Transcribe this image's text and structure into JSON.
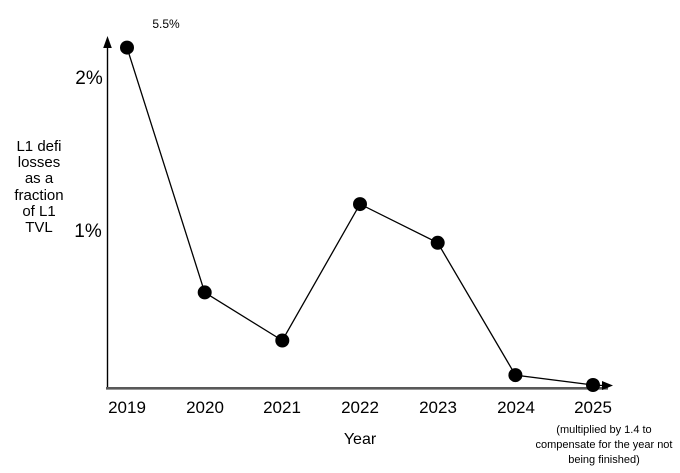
{
  "chart_data": {
    "type": "line",
    "title": "",
    "xlabel": "Year",
    "ylabel": "L1 defi losses as a fraction of L1 TVL",
    "categories": [
      "2019",
      "2020",
      "2021",
      "2022",
      "2023",
      "2024",
      "2025"
    ],
    "values_percent": [
      5.5,
      0.61,
      0.3,
      1.18,
      0.93,
      0.08,
      0.01
    ],
    "plotted_percent": [
      2.19,
      0.61,
      0.3,
      1.18,
      0.93,
      0.077,
      0.013
    ],
    "clipped_points": [
      {
        "category": "2019",
        "true_value_percent": 5.5,
        "note": "point drawn clipped near top of y-axis, labeled 5.5%"
      }
    ],
    "y_tick_labels": [
      "2%",
      "1%"
    ],
    "y_tick_values_percent": [
      2,
      1
    ],
    "ylim_percent": [
      0,
      2.26
    ],
    "grid": false,
    "legend": null,
    "marker": "filled-circle",
    "annotations": [
      {
        "text": "5.5%",
        "target": "2019 point"
      },
      {
        "text": "(multiplied by 1.4 to compensate for the year not being finished)",
        "target": "2025 point"
      }
    ],
    "colors": {
      "line": "#000000",
      "point": "#000000",
      "y_axis": "#000000",
      "x_axis": "#595959",
      "arrowhead": "#000000",
      "text": "#000000",
      "background": "#ffffff"
    }
  },
  "labels": {
    "ylabel_lines": [
      "L1 defi",
      "losses",
      "as a",
      "fraction",
      "of L1",
      "TVL"
    ],
    "tick_2pct": "2%",
    "tick_1pct": "1%",
    "annotation_55": "5.5%",
    "xlabel": "Year",
    "footnote_lines": [
      "(multiplied by 1.4 to",
      "compensate for the year not",
      "being finished)"
    ]
  }
}
